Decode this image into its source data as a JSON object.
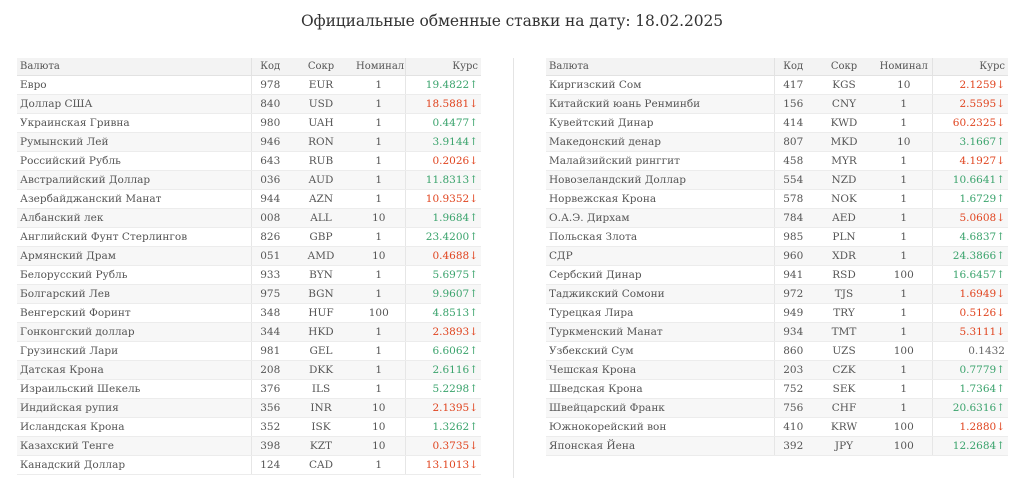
{
  "title": "Официальные обменные ставки на дату: 18.02.2025",
  "colors": {
    "up": "#3aa36c",
    "down": "#e0441f"
  },
  "columns": {
    "name": "Валюта",
    "code": "Код",
    "abbr": "Сокр",
    "nominal": "Номинал",
    "rate": "Курс"
  },
  "left": [
    {
      "name": "Евро",
      "code": "978",
      "abbr": "EUR",
      "nominal": "1",
      "rate": "19.4822↑",
      "trend": "up"
    },
    {
      "name": "Доллар США",
      "code": "840",
      "abbr": "USD",
      "nominal": "1",
      "rate": "18.5881↓",
      "trend": "down"
    },
    {
      "name": "Украинская Гривна",
      "code": "980",
      "abbr": "UAH",
      "nominal": "1",
      "rate": "0.4477↑",
      "trend": "up"
    },
    {
      "name": "Румынский Лей",
      "code": "946",
      "abbr": "RON",
      "nominal": "1",
      "rate": "3.9144↑",
      "trend": "up"
    },
    {
      "name": "Российский Рубль",
      "code": "643",
      "abbr": "RUB",
      "nominal": "1",
      "rate": "0.2026↓",
      "trend": "down"
    },
    {
      "name": "Австралийский Доллар",
      "code": "036",
      "abbr": "AUD",
      "nominal": "1",
      "rate": "11.8313↑",
      "trend": "up"
    },
    {
      "name": "Азербайджанский Манат",
      "code": "944",
      "abbr": "AZN",
      "nominal": "1",
      "rate": "10.9352↓",
      "trend": "down"
    },
    {
      "name": "Албанский лек",
      "code": "008",
      "abbr": "ALL",
      "nominal": "10",
      "rate": "1.9684↑",
      "trend": "up"
    },
    {
      "name": "Английский Фунт Стерлингов",
      "code": "826",
      "abbr": "GBP",
      "nominal": "1",
      "rate": "23.4200↑",
      "trend": "up"
    },
    {
      "name": "Армянский Драм",
      "code": "051",
      "abbr": "AMD",
      "nominal": "10",
      "rate": "0.4688↓",
      "trend": "down"
    },
    {
      "name": "Белорусский Рубль",
      "code": "933",
      "abbr": "BYN",
      "nominal": "1",
      "rate": "5.6975↑",
      "trend": "up"
    },
    {
      "name": "Болгарский Лев",
      "code": "975",
      "abbr": "BGN",
      "nominal": "1",
      "rate": "9.9607↑",
      "trend": "up"
    },
    {
      "name": "Венгерский Форинт",
      "code": "348",
      "abbr": "HUF",
      "nominal": "100",
      "rate": "4.8513↑",
      "trend": "up"
    },
    {
      "name": "Гонконгский доллар",
      "code": "344",
      "abbr": "HKD",
      "nominal": "1",
      "rate": "2.3893↓",
      "trend": "down"
    },
    {
      "name": "Грузинский Лари",
      "code": "981",
      "abbr": "GEL",
      "nominal": "1",
      "rate": "6.6062↑",
      "trend": "up"
    },
    {
      "name": "Датская Крона",
      "code": "208",
      "abbr": "DKK",
      "nominal": "1",
      "rate": "2.6116↑",
      "trend": "up"
    },
    {
      "name": "Израильский Шекель",
      "code": "376",
      "abbr": "ILS",
      "nominal": "1",
      "rate": "5.2298↑",
      "trend": "up"
    },
    {
      "name": "Индийская рупия",
      "code": "356",
      "abbr": "INR",
      "nominal": "10",
      "rate": "2.1395↓",
      "trend": "down"
    },
    {
      "name": "Исландская Крона",
      "code": "352",
      "abbr": "ISK",
      "nominal": "10",
      "rate": "1.3262↑",
      "trend": "up"
    },
    {
      "name": "Казахский Тенге",
      "code": "398",
      "abbr": "KZT",
      "nominal": "10",
      "rate": "0.3735↓",
      "trend": "down"
    },
    {
      "name": "Канадский Доллар",
      "code": "124",
      "abbr": "CAD",
      "nominal": "1",
      "rate": "13.1013↓",
      "trend": "down"
    }
  ],
  "right": [
    {
      "name": "Киргизский Сом",
      "code": "417",
      "abbr": "KGS",
      "nominal": "10",
      "rate": "2.1259↓",
      "trend": "down"
    },
    {
      "name": "Китайский юань Ренминби",
      "code": "156",
      "abbr": "CNY",
      "nominal": "1",
      "rate": "2.5595↓",
      "trend": "down"
    },
    {
      "name": "Кувейтский Динар",
      "code": "414",
      "abbr": "KWD",
      "nominal": "1",
      "rate": "60.2325↓",
      "trend": "down"
    },
    {
      "name": "Македонский денар",
      "code": "807",
      "abbr": "MKD",
      "nominal": "10",
      "rate": "3.1667↑",
      "trend": "up"
    },
    {
      "name": "Малайзийский ринггит",
      "code": "458",
      "abbr": "MYR",
      "nominal": "1",
      "rate": "4.1927↓",
      "trend": "down"
    },
    {
      "name": "Новозеландский Доллар",
      "code": "554",
      "abbr": "NZD",
      "nominal": "1",
      "rate": "10.6641↑",
      "trend": "up"
    },
    {
      "name": "Норвежская Крона",
      "code": "578",
      "abbr": "NOK",
      "nominal": "1",
      "rate": "1.6729↑",
      "trend": "up"
    },
    {
      "name": "О.А.Э. Дирхам",
      "code": "784",
      "abbr": "AED",
      "nominal": "1",
      "rate": "5.0608↓",
      "trend": "down"
    },
    {
      "name": "Польская Злота",
      "code": "985",
      "abbr": "PLN",
      "nominal": "1",
      "rate": "4.6837↑",
      "trend": "up"
    },
    {
      "name": "СДР",
      "code": "960",
      "abbr": "XDR",
      "nominal": "1",
      "rate": "24.3866↑",
      "trend": "up"
    },
    {
      "name": "Сербский Динар",
      "code": "941",
      "abbr": "RSD",
      "nominal": "100",
      "rate": "16.6457↑",
      "trend": "up"
    },
    {
      "name": "Таджикский Сомони",
      "code": "972",
      "abbr": "TJS",
      "nominal": "1",
      "rate": "1.6949↓",
      "trend": "down"
    },
    {
      "name": "Турецкая Лира",
      "code": "949",
      "abbr": "TRY",
      "nominal": "1",
      "rate": "0.5126↓",
      "trend": "down"
    },
    {
      "name": "Туркменский Манат",
      "code": "934",
      "abbr": "TMT",
      "nominal": "1",
      "rate": "5.3111↓",
      "trend": "down"
    },
    {
      "name": "Узбекский Сум",
      "code": "860",
      "abbr": "UZS",
      "nominal": "100",
      "rate": "0.1432",
      "trend": "flat"
    },
    {
      "name": "Чешская Крона",
      "code": "203",
      "abbr": "CZK",
      "nominal": "1",
      "rate": "0.7779↑",
      "trend": "up"
    },
    {
      "name": "Шведская Крона",
      "code": "752",
      "abbr": "SEK",
      "nominal": "1",
      "rate": "1.7364↑",
      "trend": "up"
    },
    {
      "name": "Швейцарский Франк",
      "code": "756",
      "abbr": "CHF",
      "nominal": "1",
      "rate": "20.6316↑",
      "trend": "up"
    },
    {
      "name": "Южнокорейский вон",
      "code": "410",
      "abbr": "KRW",
      "nominal": "100",
      "rate": "1.2880↓",
      "trend": "down"
    },
    {
      "name": "Японская Йена",
      "code": "392",
      "abbr": "JPY",
      "nominal": "100",
      "rate": "12.2684↑",
      "trend": "up"
    }
  ]
}
